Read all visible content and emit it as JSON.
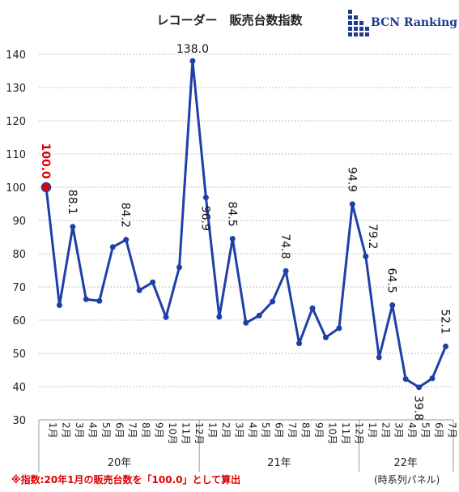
{
  "colors": {
    "line": "#1f3fa8",
    "highlight": "#e00000",
    "grid": "#bfbfbf",
    "logo": "#1f3a8f"
  },
  "logo": {
    "icon": "bcn-grid-logo-icon",
    "text": "BCN Ranking"
  },
  "footnote": "※指数:20年1月の販売台数を「100.0」として算出",
  "footnote_right": "(時系列パネル)",
  "chart_data": {
    "type": "line",
    "title": "レコーダー　販売台数指数",
    "xlabel": "",
    "ylabel": "",
    "ylim": [
      30,
      140
    ],
    "yticks": [
      30,
      40,
      50,
      60,
      70,
      80,
      90,
      100,
      110,
      120,
      130,
      140
    ],
    "grid": true,
    "categories": [
      "1月",
      "2月",
      "3月",
      "4月",
      "5月",
      "6月",
      "7月",
      "8月",
      "9月",
      "10月",
      "11月",
      "12月",
      "1月",
      "2月",
      "3月",
      "4月",
      "5月",
      "6月",
      "7月",
      "8月",
      "9月",
      "10月",
      "11月",
      "12月",
      "1月",
      "2月",
      "3月",
      "4月",
      "5月",
      "6月",
      "7月"
    ],
    "years": [
      {
        "label": "20年",
        "start": 0,
        "end": 11
      },
      {
        "label": "21年",
        "start": 12,
        "end": 23
      },
      {
        "label": "22年",
        "start": 24,
        "end": 30
      }
    ],
    "values": [
      100.0,
      64.5,
      88.1,
      66.3,
      65.8,
      82.0,
      84.2,
      69.0,
      71.4,
      60.9,
      75.9,
      138.0,
      96.9,
      61.0,
      84.5,
      59.2,
      61.4,
      65.6,
      74.8,
      53.0,
      63.6,
      54.8,
      57.6,
      94.9,
      79.2,
      48.8,
      64.5,
      42.3,
      39.8,
      42.5,
      52.1
    ],
    "labels": [
      {
        "index": 0,
        "text": "100.0",
        "pos": "above",
        "rotated": true,
        "highlight": true
      },
      {
        "index": 2,
        "text": "88.1",
        "pos": "above",
        "rotated": true
      },
      {
        "index": 6,
        "text": "84.2",
        "pos": "above",
        "rotated": true
      },
      {
        "index": 11,
        "text": "138.0",
        "pos": "above",
        "rotated": false
      },
      {
        "index": 12,
        "text": "96.9",
        "pos": "below",
        "rotated": true
      },
      {
        "index": 14,
        "text": "84.5",
        "pos": "above",
        "rotated": true
      },
      {
        "index": 18,
        "text": "74.8",
        "pos": "above",
        "rotated": true
      },
      {
        "index": 23,
        "text": "94.9",
        "pos": "above",
        "rotated": true
      },
      {
        "index": 24,
        "text": "79.2",
        "pos": "right",
        "rotated": true
      },
      {
        "index": 26,
        "text": "64.5",
        "pos": "above",
        "rotated": true
      },
      {
        "index": 28,
        "text": "39.8",
        "pos": "below",
        "rotated": true
      },
      {
        "index": 30,
        "text": "52.1",
        "pos": "above",
        "rotated": true
      }
    ]
  }
}
